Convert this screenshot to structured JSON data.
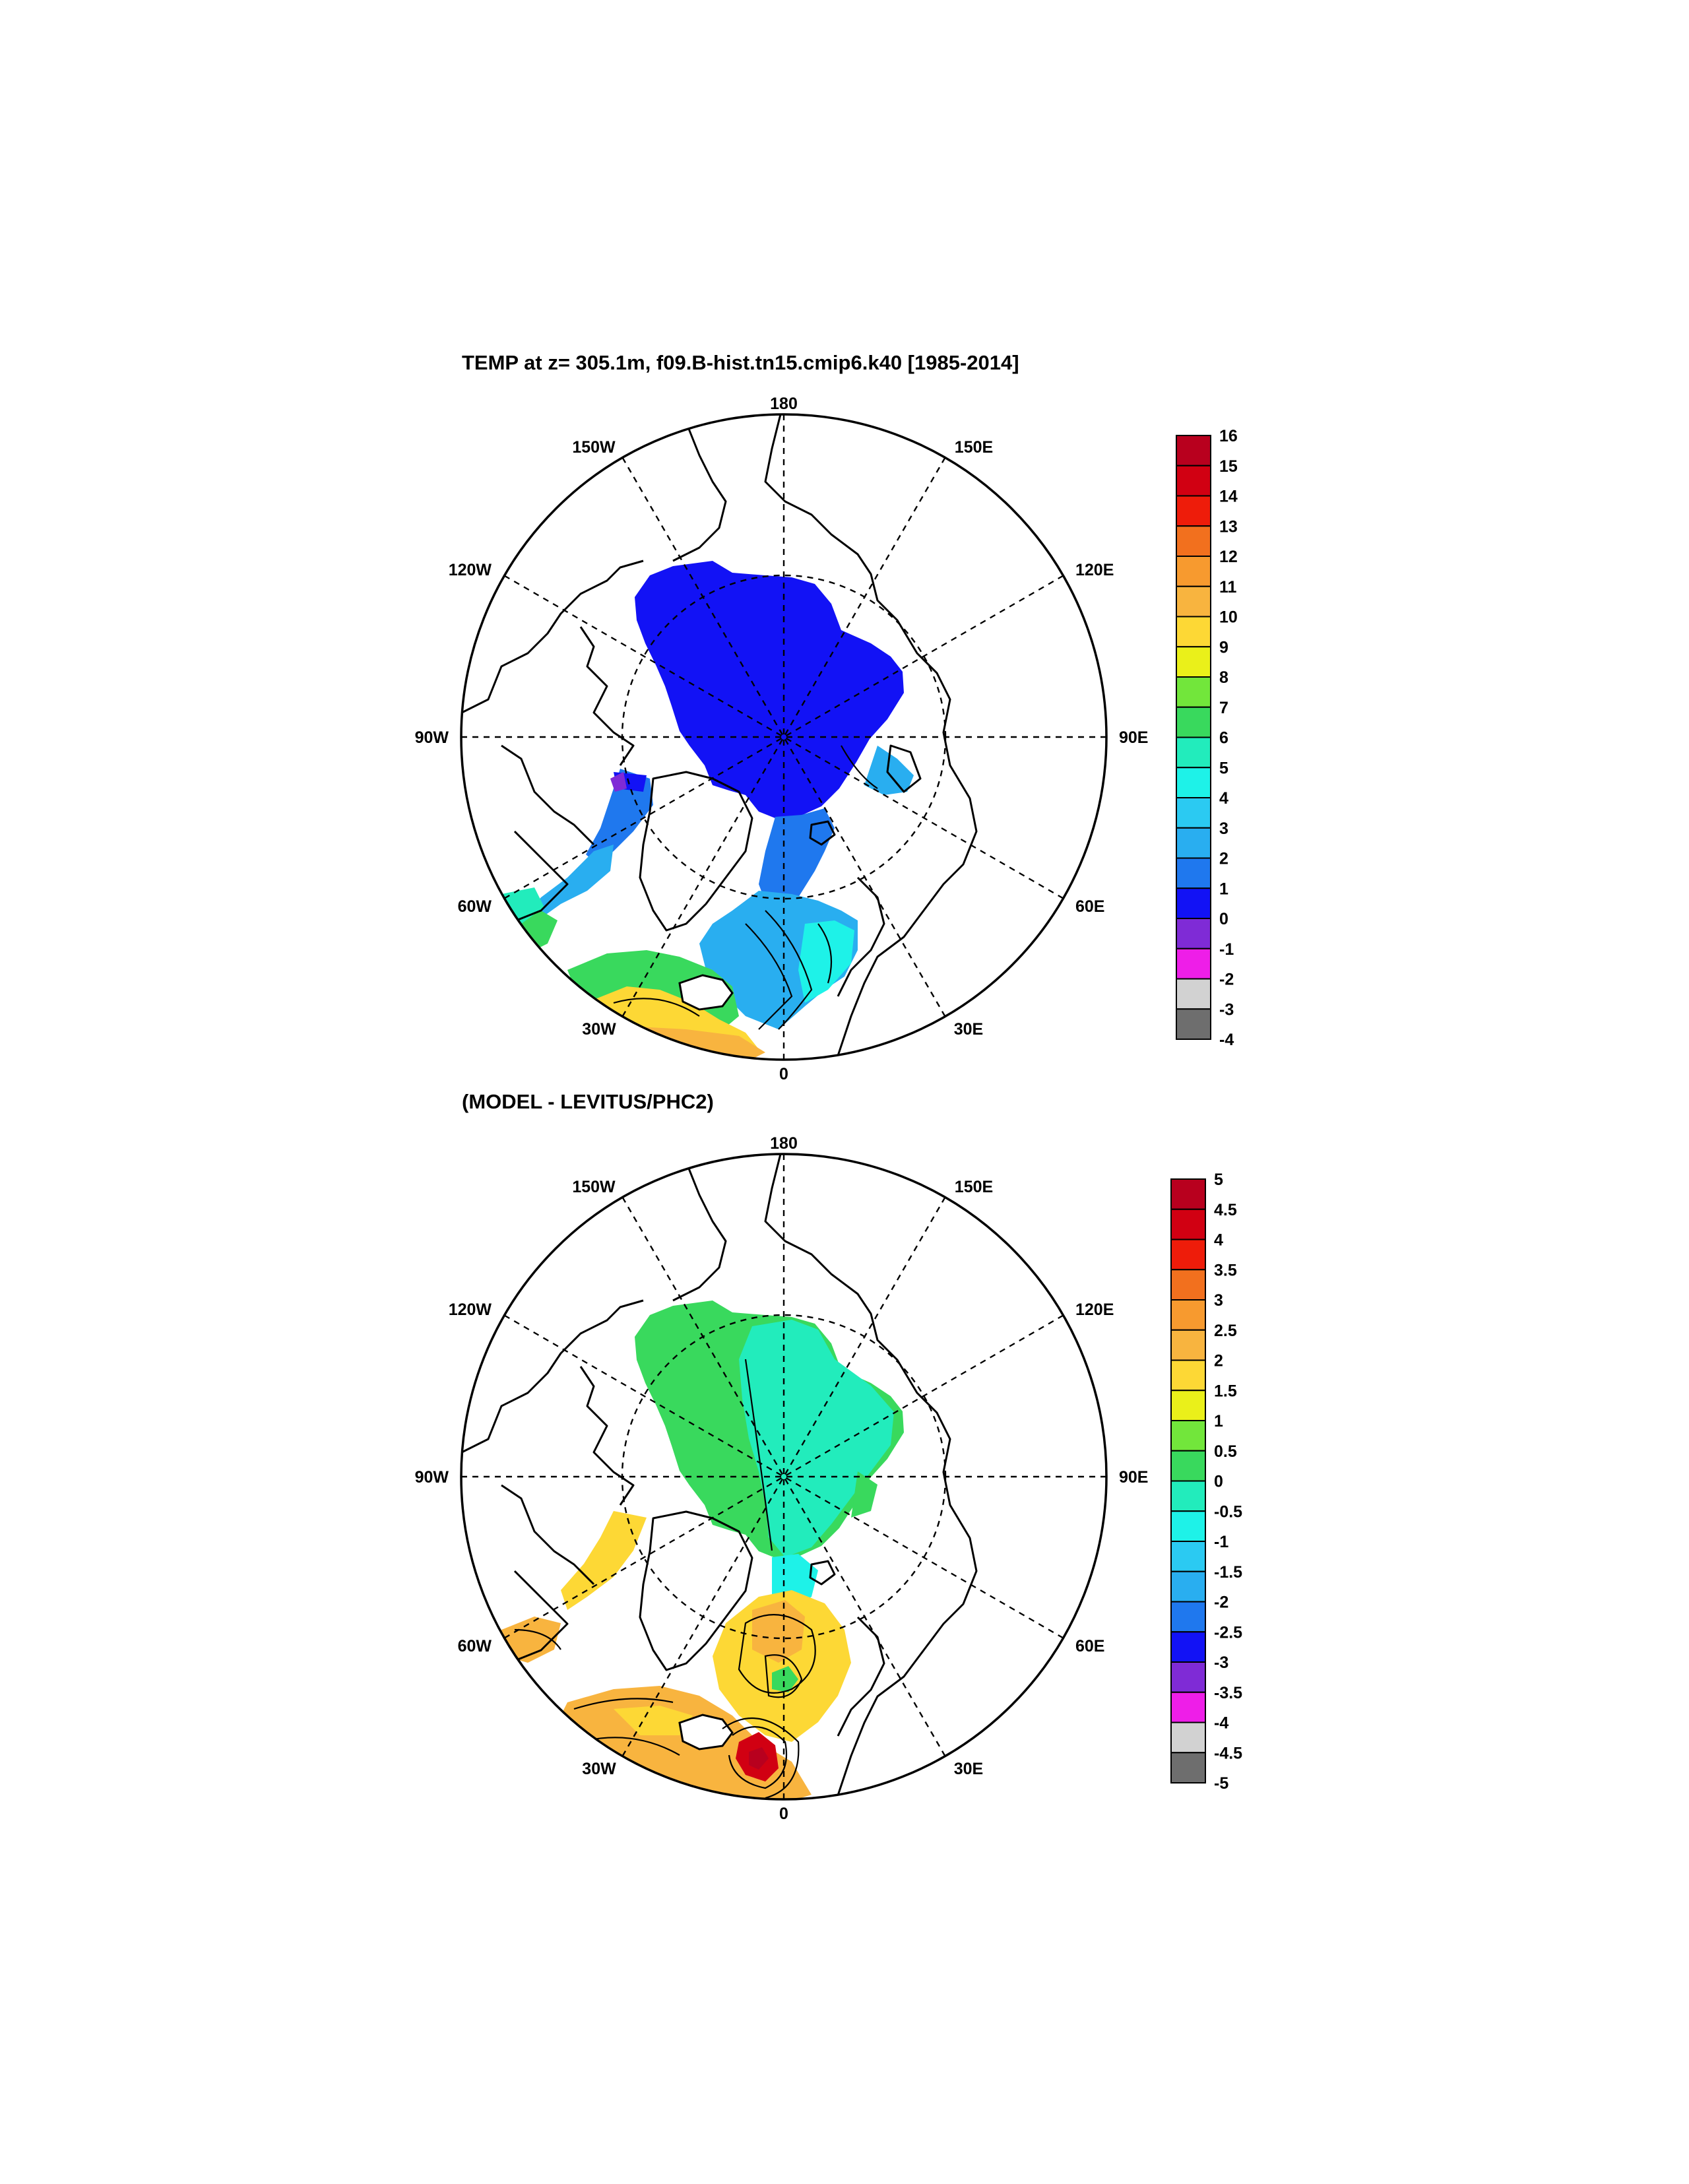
{
  "panels": [
    {
      "id": "model",
      "title": "TEMP at z= 305.1m, f09.B-hist.tn15.cmip6.k40 [1985-2014]",
      "colorbar": {
        "levels": [
          "16",
          "15",
          "14",
          "13",
          "12",
          "11",
          "10",
          "9",
          "8",
          "7",
          "6",
          "5",
          "4",
          "3",
          "2",
          "1",
          "0",
          "-1",
          "-2",
          "-3",
          "-4"
        ],
        "colors": [
          "#b8001e",
          "#d10012",
          "#ee1c0a",
          "#f2701e",
          "#f79a2f",
          "#f8b43f",
          "#fdd835",
          "#eaf01a",
          "#72e63b",
          "#39d95d",
          "#22ecbc",
          "#1ef2e8",
          "#2bcaf2",
          "#29aef0",
          "#1f78ee",
          "#1212f5",
          "#7f2bd6",
          "#ee1ee8",
          "#d2d2d2",
          "#6e6e6e"
        ]
      }
    },
    {
      "id": "difference",
      "title": "(MODEL - LEVITUS/PHC2)",
      "colorbar": {
        "levels": [
          "5",
          "4.5",
          "4",
          "3.5",
          "3",
          "2.5",
          "2",
          "1.5",
          "1",
          "0.5",
          "0",
          "-0.5",
          "-1",
          "-1.5",
          "-2",
          "-2.5",
          "-3",
          "-3.5",
          "-4",
          "-4.5",
          "-5"
        ],
        "colors": [
          "#b8001e",
          "#d10012",
          "#ee1c0a",
          "#f2701e",
          "#f79a2f",
          "#f8b43f",
          "#fdd835",
          "#eaf01a",
          "#72e63b",
          "#39d95d",
          "#22ecbc",
          "#1ef2e8",
          "#2bcaf2",
          "#29aef0",
          "#1f78ee",
          "#1212f5",
          "#7f2bd6",
          "#ee1ee8",
          "#d2d2d2",
          "#6e6e6e"
        ]
      }
    }
  ],
  "longitude_labels": {
    "top": "180",
    "bottom": "0",
    "left": "90W",
    "right": "90E",
    "upper_left": "150W",
    "upper_right": "150E",
    "mid_upper_left": "120W",
    "mid_upper_right": "120E",
    "mid_lower_left": "60W",
    "mid_lower_right": "60E",
    "lower_left": "30W",
    "lower_right": "30E"
  }
}
